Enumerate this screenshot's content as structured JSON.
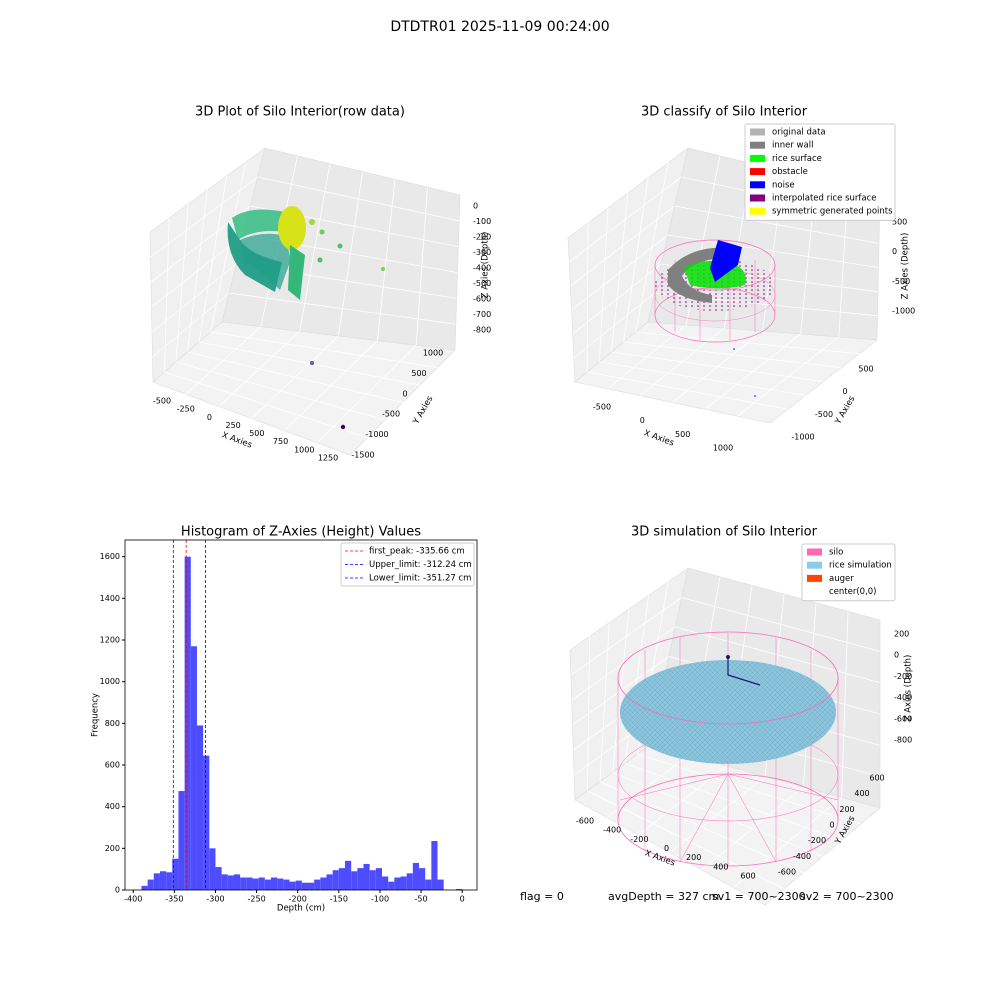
{
  "title": "DTDTR01 2025-11-09 00:24:00",
  "footer": [
    "flag = 0",
    "avgDepth = 327 cm",
    "sv1 = 700~2300",
    "sv2 = 700~2300"
  ],
  "chart_data": [
    {
      "type": "scatter3d",
      "title": "3D Plot of Silo Interior(row data)",
      "xlabel": "X Axies",
      "ylabel": "Y Axies",
      "zlabel": "Z Axies (Depth)",
      "xticks": [
        -500,
        -250,
        0,
        250,
        500,
        750,
        1000,
        1250
      ],
      "yticks": [
        1000,
        500,
        0,
        -500,
        -1000,
        -1500
      ],
      "zticks": [
        0,
        -100,
        -200,
        -300,
        -400,
        -500,
        -600,
        -700,
        -800
      ]
    },
    {
      "type": "scatter3d",
      "title": "3D classify of Silo Interior",
      "xlabel": "X Axies",
      "ylabel": "Y Axies",
      "zlabel": "Z Axies (Depth)",
      "xticks": [
        -500,
        0,
        500,
        1000
      ],
      "yticks": [
        500,
        0,
        -500,
        -1000
      ],
      "zticks": [
        500,
        0,
        -500,
        -1000
      ],
      "legend": [
        {
          "name": "original data",
          "color": "#b3b3b3"
        },
        {
          "name": "inner wall",
          "color": "#808080"
        },
        {
          "name": "rice surface",
          "color": "#00ff00"
        },
        {
          "name": "obstacle",
          "color": "#ff0000"
        },
        {
          "name": "noise",
          "color": "#0000ff"
        },
        {
          "name": "interpolated rice surface",
          "color": "#800080"
        },
        {
          "name": "symmetric generated points",
          "color": "#ffff00"
        }
      ]
    },
    {
      "type": "histogram",
      "title": "Histogram of Z-Axies (Height) Values",
      "xlabel": "Depth (cm)",
      "ylabel": "Frequency",
      "color": "#4d4dff",
      "bins": [
        -390,
        -382.5,
        -375,
        -367.5,
        -360,
        -352.5,
        -345,
        -337.5,
        -330,
        -322.5,
        -315,
        -307.5,
        -300,
        -292.5,
        -285,
        -277.5,
        -270,
        -262.5,
        -255,
        -247.5,
        -240,
        -232.5,
        -225,
        -217.5,
        -210,
        -202.5,
        -195,
        -187.5,
        -180,
        -172.5,
        -165,
        -157.5,
        -150,
        -142.5,
        -135,
        -127.5,
        -120,
        -112.5,
        -105,
        -97.5,
        -90,
        -82.5,
        -75,
        -67.5,
        -60,
        -52.5,
        -45,
        -37.5,
        -30,
        -22.5,
        -15,
        -7.5,
        0
      ],
      "counts": [
        20,
        50,
        80,
        90,
        85,
        150,
        475,
        1600,
        1170,
        790,
        645,
        200,
        110,
        75,
        70,
        75,
        60,
        60,
        55,
        60,
        50,
        60,
        55,
        50,
        40,
        45,
        35,
        35,
        50,
        60,
        75,
        95,
        105,
        140,
        90,
        105,
        125,
        95,
        105,
        65,
        40,
        60,
        65,
        80,
        130,
        105,
        50,
        235,
        50,
        0,
        0,
        5
      ],
      "xlim": [
        -410,
        18
      ],
      "ylim": [
        0,
        1680
      ],
      "xticks": [
        -400,
        -350,
        -300,
        -250,
        -200,
        -150,
        -100,
        -50,
        0
      ],
      "yticks": [
        0,
        200,
        400,
        600,
        800,
        1000,
        1200,
        1400,
        1600
      ],
      "vlines": [
        {
          "name": "first_peak: -335.66 cm",
          "value": -335.66,
          "color": "#ff0000"
        },
        {
          "name": "Upper_limit: -312.24 cm",
          "value": -312.24,
          "color": "#0000ff"
        },
        {
          "name": "Lower_limit: -351.27 cm",
          "value": -351.27,
          "color": "#0000ff"
        }
      ]
    },
    {
      "type": "scatter3d",
      "title": "3D simulation of Silo Interior",
      "xlabel": "X Axies",
      "ylabel": "Y Axies",
      "zlabel": "Z Axies (Depth)",
      "xticks": [
        -600,
        -400,
        -200,
        0,
        200,
        400,
        600
      ],
      "yticks": [
        600,
        400,
        200,
        0,
        -200,
        -400,
        -600
      ],
      "zticks": [
        200,
        0,
        -200,
        -400,
        -600,
        -800
      ],
      "legend": [
        {
          "name": "silo",
          "color": "#ff69b4"
        },
        {
          "name": "rice simulation",
          "color": "#87ceeb"
        },
        {
          "name": "auger",
          "color": "#ff4500"
        },
        {
          "name": "center(0,0)",
          "color": "#ffffff"
        }
      ]
    }
  ]
}
